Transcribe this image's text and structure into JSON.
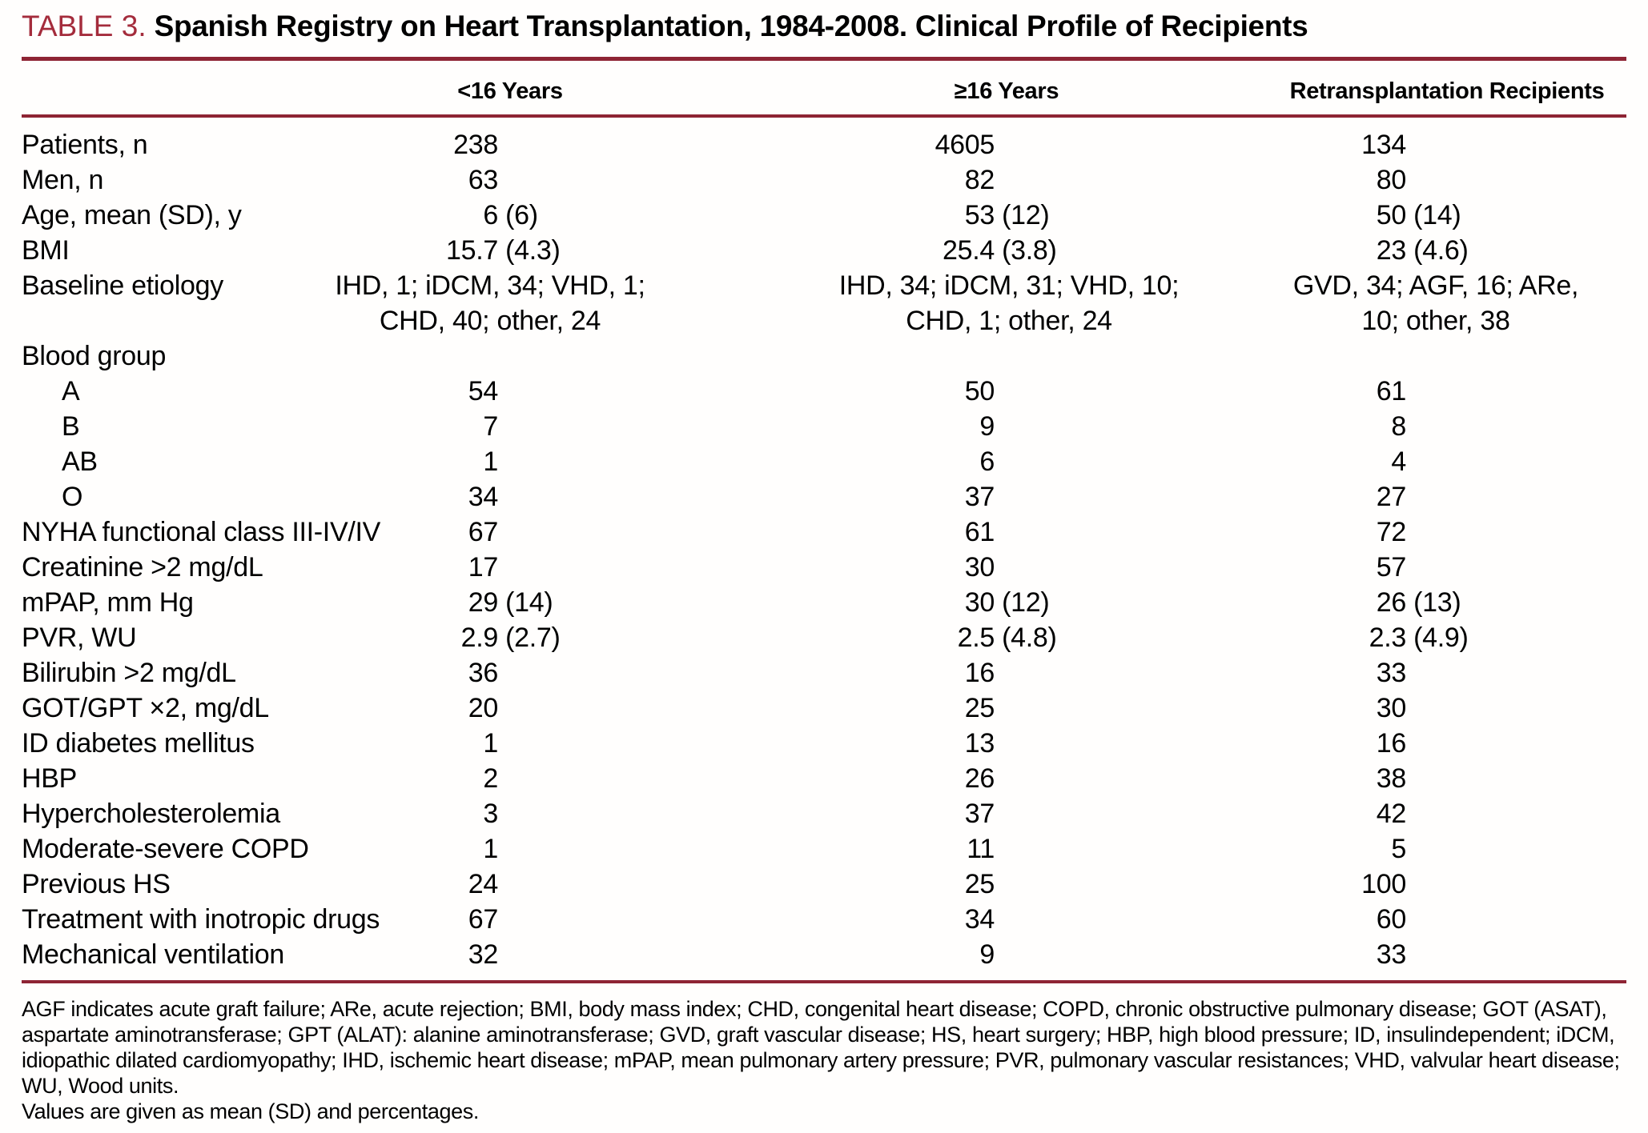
{
  "table": {
    "label": "TABLE 3.",
    "title": "Spanish Registry on Heart Transplantation, 1984-2008. Clinical Profile of Recipients",
    "columns": [
      "<16 Years",
      "≥16 Years",
      "Retransplantation Recipients"
    ],
    "rows": [
      {
        "label": "Patients, n",
        "values": [
          "238",
          "4605",
          "134"
        ]
      },
      {
        "label": "Men, n",
        "values": [
          "63",
          "82",
          "80"
        ]
      },
      {
        "label": "Age, mean (SD), y",
        "values": [
          "6 (6)",
          "53 (12)",
          "50 (14)"
        ]
      },
      {
        "label": "BMI",
        "values": [
          "15.7 (4.3)",
          "25.4 (3.8)",
          "23 (4.6)"
        ]
      },
      {
        "label": "Baseline etiology",
        "type": "multiline",
        "values": [
          [
            "IHD, 1; iDCM, 34; VHD, 1;",
            "CHD, 40; other, 24"
          ],
          [
            "IHD, 34; iDCM, 31; VHD, 10;",
            "CHD, 1; other, 24"
          ],
          [
            "GVD, 34; AGF, 16; ARe,",
            "10; other, 38"
          ]
        ]
      },
      {
        "label": "Blood group",
        "type": "section",
        "values": [
          "",
          "",
          ""
        ]
      },
      {
        "label": "A",
        "type": "sub",
        "values": [
          "54",
          "50",
          "61"
        ]
      },
      {
        "label": "B",
        "type": "sub",
        "values": [
          "7",
          "9",
          "8"
        ]
      },
      {
        "label": "AB",
        "type": "sub",
        "values": [
          "1",
          "6",
          "4"
        ]
      },
      {
        "label": "O",
        "type": "sub",
        "values": [
          "34",
          "37",
          "27"
        ]
      },
      {
        "label": "NYHA functional class III-IV/IV",
        "values": [
          "67",
          "61",
          "72"
        ]
      },
      {
        "label": "Creatinine >2 mg/dL",
        "values": [
          "17",
          "30",
          "57"
        ]
      },
      {
        "label": "mPAP, mm Hg",
        "values": [
          "29 (14)",
          "30 (12)",
          "26 (13)"
        ]
      },
      {
        "label": "PVR, WU",
        "values": [
          "2.9 (2.7)",
          "2.5 (4.8)",
          "2.3 (4.9)"
        ]
      },
      {
        "label": "Bilirubin >2 mg/dL",
        "values": [
          "36",
          "16",
          "33"
        ]
      },
      {
        "label": "GOT/GPT ×2, mg/dL",
        "values": [
          "20",
          "25",
          "30"
        ]
      },
      {
        "label": "ID diabetes mellitus",
        "values": [
          "1",
          "13",
          "16"
        ]
      },
      {
        "label": "HBP",
        "values": [
          "2",
          "26",
          "38"
        ]
      },
      {
        "label": "Hypercholesterolemia",
        "values": [
          "3",
          "37",
          "42"
        ]
      },
      {
        "label": "Moderate-severe COPD",
        "values": [
          "1",
          "11",
          "5"
        ]
      },
      {
        "label": "Previous HS",
        "values": [
          "24",
          "25",
          "100"
        ]
      },
      {
        "label": "Treatment with inotropic drugs",
        "values": [
          "67",
          "34",
          "60"
        ]
      },
      {
        "label": "Mechanical ventilation",
        "values": [
          "32",
          "9",
          "33"
        ]
      }
    ],
    "footnotes": {
      "abbreviations": "AGF indicates acute graft failure; ARe, acute rejection; BMI, body mass index; CHD, congenital heart disease; COPD, chronic obstructive pulmonary disease; GOT (ASAT), aspartate aminotransferase; GPT (ALAT): alanine aminotransferase; GVD, graft vascular disease; HS, heart surgery; HBP, high blood pressure; ID, insulindependent; iDCM, idiopathic dilated cardiomyopathy; IHD, ischemic heart disease; mPAP, mean pulmonary artery pressure; PVR, pulmonary vascular resistances; VHD, valvular heart disease; WU, Wood units.",
      "values_note": "Values are given as mean (SD) and percentages."
    },
    "colors": {
      "accent_text": "#a42c3c",
      "rule": "#8e2434"
    }
  }
}
